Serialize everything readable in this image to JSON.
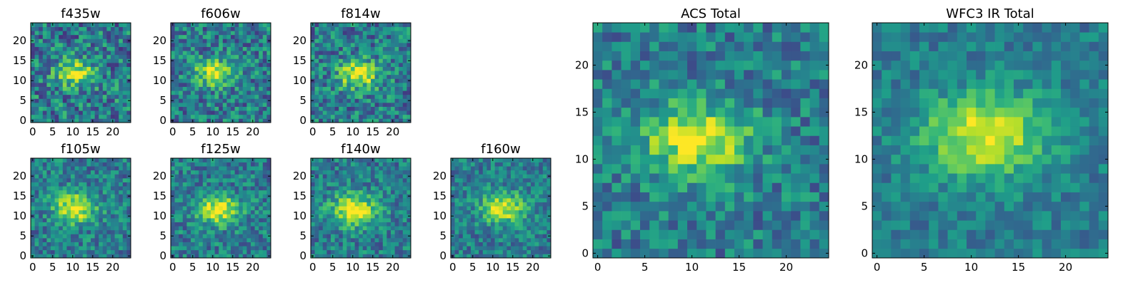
{
  "chart_data": [
    {
      "type": "heatmap",
      "title": "f435w",
      "xlim": [
        0,
        25
      ],
      "ylim": [
        0,
        25
      ],
      "xticks": [
        0,
        5,
        10,
        15,
        20
      ],
      "yticks": [
        0,
        5,
        10,
        15,
        20
      ],
      "grid_size": 25,
      "seed": 11,
      "sigma": 2.6,
      "noise": 0.55,
      "source_center": [
        11,
        12.5
      ],
      "colormap": "viridis"
    },
    {
      "type": "heatmap",
      "title": "f606w",
      "xlim": [
        0,
        25
      ],
      "ylim": [
        0,
        25
      ],
      "xticks": [
        0,
        5,
        10,
        15,
        20
      ],
      "yticks": [
        0,
        5,
        10,
        15,
        20
      ],
      "grid_size": 25,
      "seed": 23,
      "sigma": 2.6,
      "noise": 0.5,
      "source_center": [
        11,
        12.5
      ],
      "colormap": "viridis"
    },
    {
      "type": "heatmap",
      "title": "f814w",
      "xlim": [
        0,
        25
      ],
      "ylim": [
        0,
        25
      ],
      "xticks": [
        0,
        5,
        10,
        15,
        20
      ],
      "yticks": [
        0,
        5,
        10,
        15,
        20
      ],
      "grid_size": 25,
      "seed": 37,
      "sigma": 2.8,
      "noise": 0.5,
      "source_center": [
        12,
        12
      ],
      "colormap": "viridis"
    },
    {
      "type": "heatmap",
      "title": "f105w",
      "xlim": [
        0,
        25
      ],
      "ylim": [
        0,
        25
      ],
      "xticks": [
        0,
        5,
        10,
        15,
        20
      ],
      "yticks": [
        0,
        5,
        10,
        15,
        20
      ],
      "grid_size": 25,
      "seed": 41,
      "sigma": 3.0,
      "noise": 0.42,
      "source_center": [
        11,
        12.5
      ],
      "colormap": "viridis"
    },
    {
      "type": "heatmap",
      "title": "f125w",
      "xlim": [
        0,
        25
      ],
      "ylim": [
        0,
        25
      ],
      "xticks": [
        0,
        5,
        10,
        15,
        20
      ],
      "yticks": [
        0,
        5,
        10,
        15,
        20
      ],
      "grid_size": 25,
      "seed": 53,
      "sigma": 3.0,
      "noise": 0.42,
      "source_center": [
        12,
        12
      ],
      "colormap": "viridis"
    },
    {
      "type": "heatmap",
      "title": "f140w",
      "xlim": [
        0,
        25
      ],
      "ylim": [
        0,
        25
      ],
      "xticks": [
        0,
        5,
        10,
        15,
        20
      ],
      "yticks": [
        0,
        5,
        10,
        15,
        20
      ],
      "grid_size": 25,
      "seed": 67,
      "sigma": 3.2,
      "noise": 0.4,
      "source_center": [
        11,
        12
      ],
      "colormap": "viridis"
    },
    {
      "type": "heatmap",
      "title": "f160w",
      "xlim": [
        0,
        25
      ],
      "ylim": [
        0,
        25
      ],
      "xticks": [
        0,
        5,
        10,
        15,
        20
      ],
      "yticks": [
        0,
        5,
        10,
        15,
        20
      ],
      "grid_size": 25,
      "seed": 79,
      "sigma": 3.0,
      "noise": 0.38,
      "source_center": [
        13,
        12.5
      ],
      "colormap": "viridis"
    },
    {
      "type": "heatmap",
      "title": "ACS Total",
      "xlim": [
        0,
        25
      ],
      "ylim": [
        0,
        25
      ],
      "xticks": [
        0,
        5,
        10,
        15,
        20
      ],
      "yticks": [
        0,
        5,
        10,
        15,
        20
      ],
      "grid_size": 25,
      "seed": 97,
      "sigma": 3.2,
      "noise": 0.4,
      "source_center": [
        11,
        12.5
      ],
      "colormap": "viridis"
    },
    {
      "type": "heatmap",
      "title": "WFC3 IR Total",
      "xlim": [
        0,
        25
      ],
      "ylim": [
        0,
        25
      ],
      "xticks": [
        0,
        5,
        10,
        15,
        20
      ],
      "yticks": [
        0,
        5,
        10,
        15,
        20
      ],
      "grid_size": 25,
      "seed": 113,
      "sigma": 3.6,
      "noise": 0.28,
      "source_center": [
        12,
        13
      ],
      "colormap": "viridis"
    }
  ],
  "colors": {
    "frame": "#000000",
    "viridis": [
      "#440154",
      "#482878",
      "#3e4989",
      "#31688e",
      "#26828e",
      "#1f9e89",
      "#35b779",
      "#6ece58",
      "#b5de2b",
      "#fde725"
    ]
  }
}
